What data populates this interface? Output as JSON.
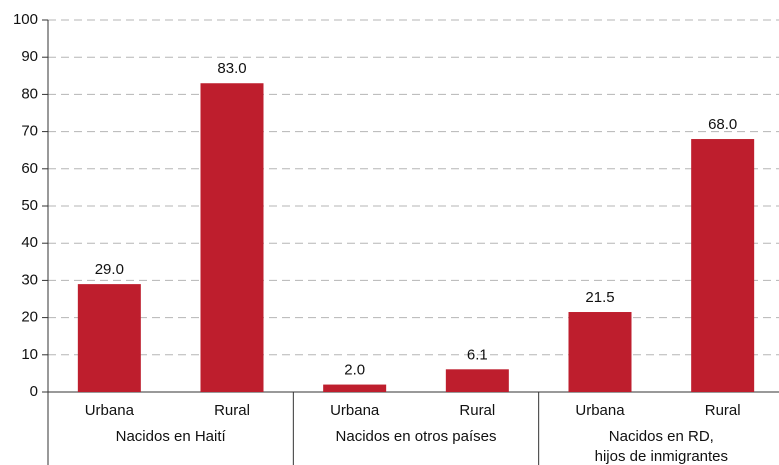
{
  "chart_data": {
    "type": "bar",
    "categories": [
      "Urbana",
      "Rural",
      "Urbana",
      "Rural",
      "Urbana",
      "Rural"
    ],
    "groups": [
      [
        "Nacidos en Haití"
      ],
      [
        "Nacidos en otros países"
      ],
      [
        "Nacidos en RD,",
        "hijos de inmigrantes"
      ]
    ],
    "values": [
      29.0,
      83.0,
      2.0,
      6.1,
      21.5,
      68.0
    ],
    "value_labels": [
      "29.0",
      "83.0",
      "2.0",
      "6.1",
      "21.5",
      "68.0"
    ],
    "color": "#be1e2d",
    "ylim": [
      0,
      100
    ],
    "yticks": [
      0,
      10,
      20,
      30,
      40,
      50,
      60,
      70,
      80,
      90,
      100
    ],
    "grid": true
  }
}
